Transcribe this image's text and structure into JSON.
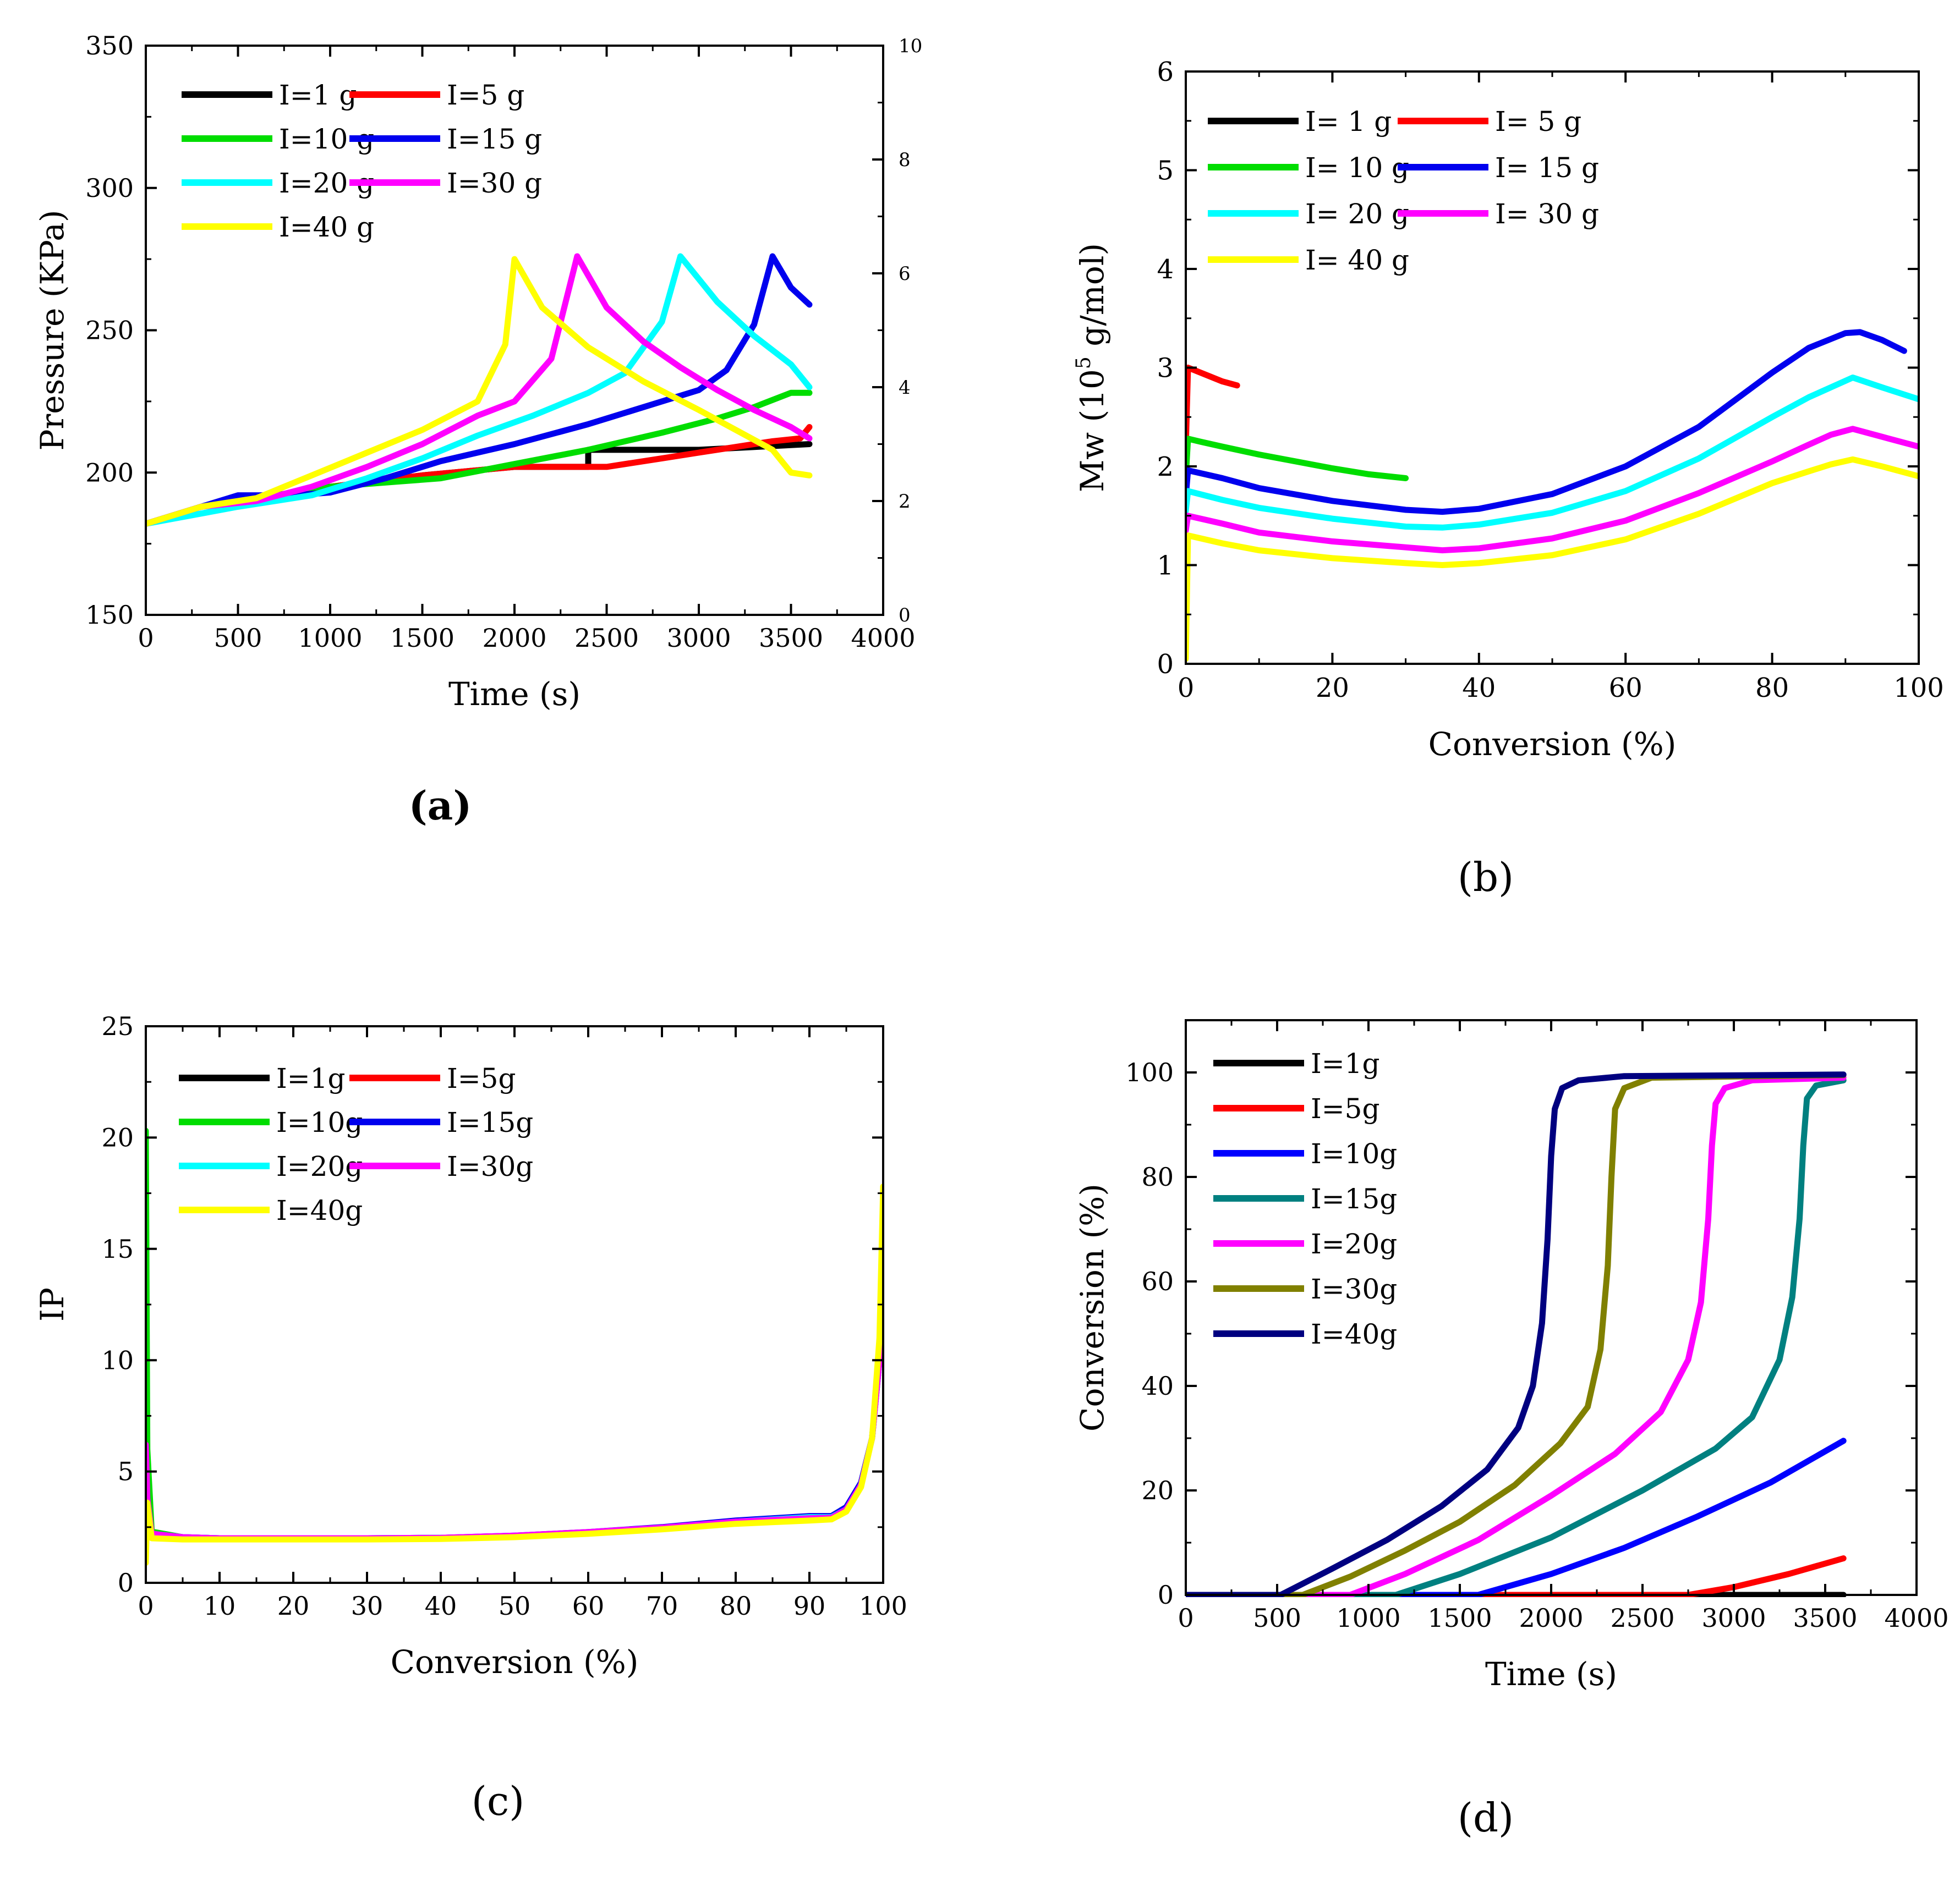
{
  "figure_panels": [
    "(a)",
    "(b)",
    "(c)",
    "(d)"
  ],
  "chart_data": [
    {
      "id": "a",
      "type": "line",
      "caption": "(a)",
      "xlabel": "Time (s)",
      "ylabel": "Pressure (KPa)",
      "xlim": [
        0,
        4000
      ],
      "ylim": [
        150,
        350
      ],
      "xticks": [
        0,
        500,
        1000,
        1500,
        2000,
        2500,
        3000,
        3500,
        4000
      ],
      "yticks": [
        150,
        200,
        250,
        300,
        350
      ],
      "y2lim": [
        0,
        10
      ],
      "y2ticks": [
        0,
        2,
        4,
        6,
        8,
        10
      ],
      "legend": "top-left",
      "series": [
        {
          "name": "I=1 g",
          "color": "#000000",
          "x": [
            0,
            300,
            600,
            1000,
            1500,
            2000,
            2400,
            2400,
            3000,
            3300,
            3600
          ],
          "y": [
            182,
            188,
            191,
            195,
            199,
            202,
            202,
            208,
            208,
            209,
            210
          ]
        },
        {
          "name": "I=5 g",
          "color": "#ff0000",
          "x": [
            0,
            300,
            600,
            1000,
            1500,
            2000,
            2500,
            2800,
            3000,
            3200,
            3400,
            3550,
            3600
          ],
          "y": [
            182,
            188,
            191,
            195,
            199,
            202,
            202,
            205,
            207,
            209,
            211,
            212,
            216
          ]
        },
        {
          "name": "I=10 g",
          "color": "#00dd00",
          "x": [
            0,
            300,
            600,
            1000,
            1400,
            1600,
            2000,
            2400,
            2800,
            3100,
            3300,
            3500,
            3600
          ],
          "y": [
            182,
            188,
            191,
            195,
            197,
            198,
            203,
            208,
            214,
            219,
            223,
            228,
            228
          ]
        },
        {
          "name": "I=15 g",
          "color": "#0000ee",
          "x": [
            0,
            500,
            800,
            1000,
            1300,
            1600,
            2000,
            2400,
            2800,
            3000,
            3150,
            3300,
            3400,
            3500,
            3600
          ],
          "y": [
            182,
            192,
            192,
            193,
            198,
            204,
            210,
            217,
            225,
            229,
            236,
            252,
            276,
            265,
            259
          ]
        },
        {
          "name": "I=20 g",
          "color": "#00ffff",
          "x": [
            0,
            500,
            900,
            1200,
            1500,
            1800,
            2100,
            2400,
            2600,
            2800,
            2900,
            3100,
            3300,
            3500,
            3600
          ],
          "y": [
            182,
            188,
            192,
            198,
            205,
            213,
            220,
            228,
            235,
            253,
            276,
            260,
            248,
            238,
            230
          ]
        },
        {
          "name": "I=30 g",
          "color": "#ff00ff",
          "x": [
            0,
            300,
            600,
            900,
            1200,
            1500,
            1800,
            2000,
            2200,
            2340,
            2500,
            2700,
            2900,
            3100,
            3300,
            3500,
            3600
          ],
          "y": [
            182,
            188,
            190,
            195,
            202,
            210,
            220,
            225,
            240,
            276,
            258,
            246,
            237,
            229,
            222,
            216,
            212
          ]
        },
        {
          "name": "I=40 g",
          "color": "#ffff00",
          "x": [
            0,
            300,
            600,
            900,
            1200,
            1500,
            1800,
            1950,
            2000,
            2150,
            2400,
            2700,
            3000,
            3200,
            3400,
            3500,
            3600
          ],
          "y": [
            182,
            188,
            191,
            199,
            207,
            215,
            225,
            245,
            275,
            258,
            244,
            232,
            222,
            215,
            208,
            200,
            199
          ]
        }
      ]
    },
    {
      "id": "b",
      "type": "line",
      "caption": "(b)",
      "xlabel": "Conversion (%)",
      "ylabel_pre": "Mw (10",
      "ylabel_sup": "5",
      "ylabel_post": " g/mol)",
      "xlim": [
        0,
        100
      ],
      "ylim": [
        0,
        6
      ],
      "xticks": [
        0,
        20,
        40,
        60,
        80,
        100
      ],
      "yticks": [
        0,
        1,
        2,
        3,
        4,
        5,
        6
      ],
      "legend": "top-left",
      "series": [
        {
          "name": "I= 1 g",
          "color": "#000000",
          "x": [],
          "y": []
        },
        {
          "name": "I= 5 g",
          "color": "#ff0000",
          "x": [
            0,
            0.3,
            1,
            3,
            5,
            7
          ],
          "y": [
            2.2,
            3.0,
            2.98,
            2.92,
            2.86,
            2.82
          ]
        },
        {
          "name": "I= 10 g",
          "color": "#00dd00",
          "x": [
            0,
            0.3,
            2,
            5,
            10,
            15,
            20,
            25,
            30
          ],
          "y": [
            1.9,
            2.28,
            2.25,
            2.2,
            2.12,
            2.05,
            1.98,
            1.92,
            1.88
          ]
        },
        {
          "name": "I= 15 g",
          "color": "#0000ee",
          "x": [
            0,
            0.3,
            5,
            10,
            20,
            30,
            35,
            40,
            50,
            60,
            70,
            80,
            85,
            90,
            92,
            95,
            98
          ],
          "y": [
            1.7,
            1.96,
            1.88,
            1.78,
            1.65,
            1.56,
            1.54,
            1.57,
            1.72,
            2.0,
            2.4,
            2.95,
            3.2,
            3.35,
            3.36,
            3.28,
            3.17
          ]
        },
        {
          "name": "I= 20 g",
          "color": "#00ffff",
          "x": [
            0,
            0.3,
            5,
            10,
            20,
            30,
            35,
            40,
            50,
            60,
            70,
            80,
            85,
            88,
            91,
            95,
            100
          ],
          "y": [
            1.55,
            1.75,
            1.66,
            1.58,
            1.47,
            1.39,
            1.38,
            1.41,
            1.53,
            1.75,
            2.08,
            2.5,
            2.7,
            2.8,
            2.9,
            2.8,
            2.68
          ]
        },
        {
          "name": "I= 30 g",
          "color": "#ff00ff",
          "x": [
            0,
            0.3,
            5,
            10,
            20,
            30,
            35,
            40,
            50,
            60,
            70,
            80,
            85,
            88,
            91,
            95,
            100
          ],
          "y": [
            1.35,
            1.5,
            1.42,
            1.33,
            1.24,
            1.18,
            1.15,
            1.17,
            1.27,
            1.45,
            1.73,
            2.05,
            2.22,
            2.32,
            2.38,
            2.3,
            2.2
          ]
        },
        {
          "name": "I= 40 g",
          "color": "#ffff00",
          "x": [
            0,
            0.3,
            5,
            10,
            20,
            30,
            35,
            40,
            50,
            60,
            70,
            80,
            85,
            88,
            91,
            95,
            100
          ],
          "y": [
            0.05,
            1.3,
            1.22,
            1.15,
            1.07,
            1.02,
            1.0,
            1.02,
            1.1,
            1.26,
            1.52,
            1.83,
            1.95,
            2.02,
            2.07,
            2.0,
            1.9
          ]
        }
      ]
    },
    {
      "id": "c",
      "type": "line",
      "caption": "(c)",
      "xlabel": "Conversion (%)",
      "ylabel": "IP",
      "xlim": [
        0,
        100
      ],
      "ylim": [
        0,
        25
      ],
      "xticks": [
        0,
        10,
        20,
        30,
        40,
        50,
        60,
        70,
        80,
        90,
        100
      ],
      "yticks": [
        0,
        5,
        10,
        15,
        20,
        25
      ],
      "legend": "top-left",
      "series": [
        {
          "name": "I=1g",
          "color": "#000000",
          "x": [],
          "y": []
        },
        {
          "name": "I=5g",
          "color": "#ff0000",
          "x": [],
          "y": []
        },
        {
          "name": "I=10g",
          "color": "#00dd00",
          "x": [
            0,
            0.2,
            0.8,
            5,
            10,
            20,
            30,
            40,
            50,
            60,
            70,
            80,
            90,
            93,
            95,
            97,
            98.5,
            99.5,
            100
          ],
          "y": [
            20.3,
            6,
            2.3,
            2.05,
            2.0,
            2.0,
            2.0,
            2.02,
            2.1,
            2.25,
            2.45,
            2.75,
            2.95,
            3.0,
            3.4,
            4.5,
            6.5,
            10,
            14
          ]
        },
        {
          "name": "I=15g",
          "color": "#0000ee",
          "x": [
            0,
            0.2,
            0.8,
            5,
            10,
            20,
            30,
            40,
            50,
            60,
            70,
            80,
            90,
            93,
            95,
            97,
            98.5,
            99.5,
            100
          ],
          "y": [
            5.5,
            3.5,
            2.2,
            2.05,
            2.0,
            2.0,
            2.0,
            2.02,
            2.12,
            2.28,
            2.5,
            2.8,
            3.0,
            3.0,
            3.4,
            4.5,
            6.5,
            10,
            15
          ]
        },
        {
          "name": "I=20g",
          "color": "#00ffff",
          "x": [
            0,
            0.2,
            0.8,
            5,
            10,
            20,
            30,
            40,
            50,
            60,
            70,
            80,
            90,
            93,
            95,
            97,
            98.5,
            99.5,
            100
          ],
          "y": [
            5,
            3.2,
            2.2,
            2.05,
            2.0,
            2.0,
            2.0,
            2.02,
            2.1,
            2.25,
            2.45,
            2.75,
            2.95,
            2.95,
            3.3,
            4.4,
            6.5,
            10,
            16
          ]
        },
        {
          "name": "I=30g",
          "color": "#ff00ff",
          "x": [
            0,
            0.2,
            0.8,
            5,
            10,
            20,
            30,
            40,
            50,
            60,
            70,
            80,
            90,
            93,
            95,
            97,
            98.5,
            99.5,
            100
          ],
          "y": [
            6.2,
            3.8,
            2.2,
            2.05,
            2.0,
            2.0,
            2.0,
            2.02,
            2.12,
            2.28,
            2.48,
            2.75,
            2.9,
            2.92,
            3.3,
            4.4,
            6.5,
            10,
            16.5
          ]
        },
        {
          "name": "I=40g",
          "color": "#ffff00",
          "x": [
            0,
            0.2,
            0.8,
            5,
            10,
            20,
            30,
            40,
            50,
            60,
            70,
            80,
            90,
            93,
            95,
            97,
            98.5,
            99.5,
            100
          ],
          "y": [
            0.9,
            3.6,
            2.0,
            1.95,
            1.95,
            1.95,
            1.95,
            1.97,
            2.05,
            2.2,
            2.4,
            2.65,
            2.8,
            2.85,
            3.2,
            4.3,
            6.5,
            11,
            17.8
          ]
        }
      ]
    },
    {
      "id": "d",
      "type": "line",
      "caption": "(d)",
      "xlabel": "Time (s)",
      "ylabel": "Conversion (%)",
      "xlim": [
        0,
        4000
      ],
      "ylim": [
        0,
        110
      ],
      "xticks": [
        0,
        500,
        1000,
        1500,
        2000,
        2500,
        3000,
        3500,
        4000
      ],
      "yticks": [
        0,
        20,
        40,
        60,
        80,
        100
      ],
      "legend": "top-left",
      "series": [
        {
          "name": "I=1g",
          "color": "#000000",
          "x": [
            0,
            3600
          ],
          "y": [
            0,
            0
          ]
        },
        {
          "name": "I=5g",
          "color": "#ff0000",
          "x": [
            0,
            2750,
            3000,
            3300,
            3600
          ],
          "y": [
            0,
            0,
            1.5,
            4,
            7
          ]
        },
        {
          "name": "I=10g",
          "color": "#0000ff",
          "x": [
            0,
            1600,
            2000,
            2400,
            2800,
            3200,
            3600
          ],
          "y": [
            0,
            0,
            4,
            9,
            15,
            21.5,
            29.5
          ]
        },
        {
          "name": "I=15g",
          "color": "#008080",
          "x": [
            0,
            1150,
            1500,
            2000,
            2500,
            2900,
            3100,
            3250,
            3320,
            3360,
            3380,
            3400,
            3450,
            3600
          ],
          "y": [
            0,
            0,
            4,
            11,
            20,
            28,
            34,
            45,
            57,
            72,
            86,
            95,
            97.5,
            98.5
          ]
        },
        {
          "name": "I=20g",
          "color": "#ff00ff",
          "x": [
            0,
            900,
            1200,
            1600,
            2000,
            2350,
            2600,
            2750,
            2820,
            2860,
            2880,
            2900,
            2950,
            3100,
            3600
          ],
          "y": [
            0,
            0,
            4,
            10.5,
            19,
            27,
            35,
            45,
            56,
            72,
            86,
            94,
            97,
            98.5,
            99
          ]
        },
        {
          "name": "I=30g",
          "color": "#808000",
          "x": [
            0,
            640,
            900,
            1200,
            1500,
            1800,
            2050,
            2200,
            2270,
            2310,
            2330,
            2350,
            2400,
            2550,
            3600
          ],
          "y": [
            0,
            0,
            3.5,
            8.5,
            14,
            21,
            29,
            36,
            47,
            63,
            80,
            93,
            97,
            99,
            99.5
          ]
        },
        {
          "name": "I=40g",
          "color": "#000080",
          "x": [
            0,
            520,
            800,
            1100,
            1400,
            1650,
            1820,
            1900,
            1950,
            1980,
            2000,
            2020,
            2060,
            2150,
            2400,
            3600
          ],
          "y": [
            0,
            0,
            5,
            10.5,
            17,
            24,
            32,
            40,
            52,
            68,
            84,
            93,
            97,
            98.5,
            99.3,
            99.6
          ]
        }
      ]
    }
  ]
}
